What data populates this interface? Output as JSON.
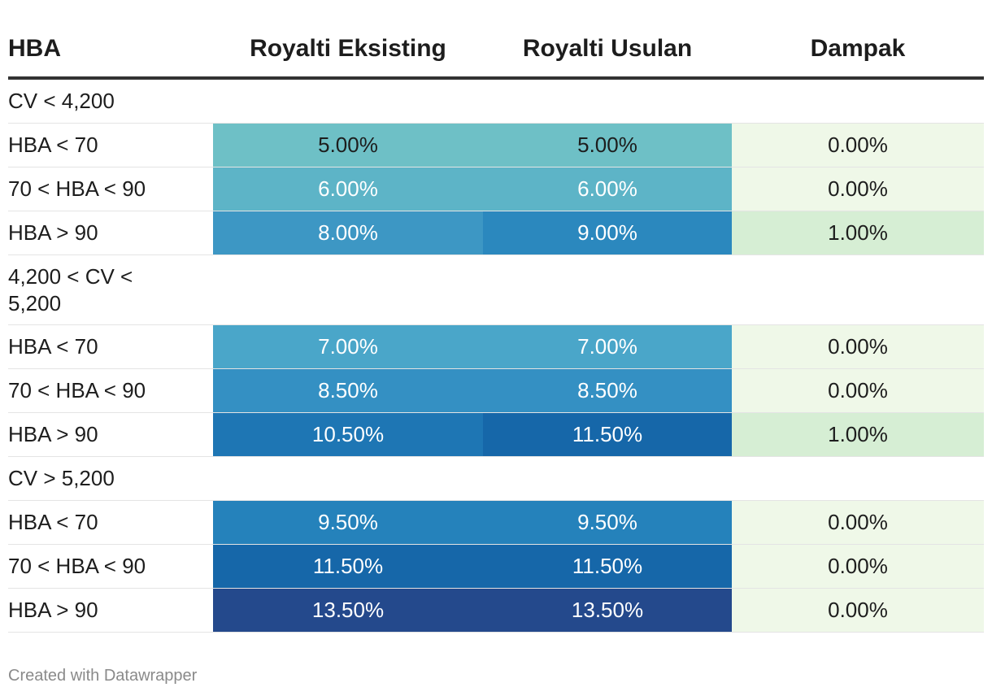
{
  "chart_data": {
    "type": "table",
    "columns": [
      "HBA",
      "Royalti Eksisting",
      "Royalti Usulan",
      "Dampak"
    ],
    "groups": [
      {
        "label": "CV < 4,200",
        "rows": [
          {
            "label": "HBA < 70",
            "eksisting": "5.00%",
            "usulan": "5.00%",
            "dampak": "0.00%",
            "eksisting_value": 5.0,
            "usulan_value": 5.0,
            "dampak_value": 0.0
          },
          {
            "label": "70 < HBA < 90",
            "eksisting": "6.00%",
            "usulan": "6.00%",
            "dampak": "0.00%",
            "eksisting_value": 6.0,
            "usulan_value": 6.0,
            "dampak_value": 0.0
          },
          {
            "label": "HBA > 90",
            "eksisting": "8.00%",
            "usulan": "9.00%",
            "dampak": "1.00%",
            "eksisting_value": 8.0,
            "usulan_value": 9.0,
            "dampak_value": 1.0
          }
        ]
      },
      {
        "label": "4,200 < CV <\n5,200",
        "rows": [
          {
            "label": "HBA < 70",
            "eksisting": "7.00%",
            "usulan": "7.00%",
            "dampak": "0.00%",
            "eksisting_value": 7.0,
            "usulan_value": 7.0,
            "dampak_value": 0.0
          },
          {
            "label": "70 < HBA < 90",
            "eksisting": "8.50%",
            "usulan": "8.50%",
            "dampak": "0.00%",
            "eksisting_value": 8.5,
            "usulan_value": 8.5,
            "dampak_value": 0.0
          },
          {
            "label": "HBA > 90",
            "eksisting": "10.50%",
            "usulan": "11.50%",
            "dampak": "1.00%",
            "eksisting_value": 10.5,
            "usulan_value": 11.5,
            "dampak_value": 1.0
          }
        ]
      },
      {
        "label": "CV > 5,200",
        "rows": [
          {
            "label": "HBA < 70",
            "eksisting": "9.50%",
            "usulan": "9.50%",
            "dampak": "0.00%",
            "eksisting_value": 9.5,
            "usulan_value": 9.5,
            "dampak_value": 0.0
          },
          {
            "label": "70 < HBA < 90",
            "eksisting": "11.50%",
            "usulan": "11.50%",
            "dampak": "0.00%",
            "eksisting_value": 11.5,
            "usulan_value": 11.5,
            "dampak_value": 0.0
          },
          {
            "label": "HBA > 90",
            "eksisting": "13.50%",
            "usulan": "13.50%",
            "dampak": "0.00%",
            "eksisting_value": 13.5,
            "usulan_value": 13.5,
            "dampak_value": 0.0
          }
        ]
      }
    ],
    "royalty_scale": {
      "stops": [
        {
          "value": 5.0,
          "color": "#6ec0c6"
        },
        {
          "value": 6.0,
          "color": "#5db4c7"
        },
        {
          "value": 7.0,
          "color": "#4aa6c9"
        },
        {
          "value": 8.0,
          "color": "#3d97c4"
        },
        {
          "value": 8.5,
          "color": "#3490c3"
        },
        {
          "value": 9.0,
          "color": "#2b88be"
        },
        {
          "value": 9.5,
          "color": "#2582bb"
        },
        {
          "value": 10.5,
          "color": "#1e76b4"
        },
        {
          "value": 11.5,
          "color": "#1667a9"
        },
        {
          "value": 13.5,
          "color": "#24498c"
        }
      ],
      "dark_text_below": 6.0
    },
    "impact_scale": {
      "stops": [
        {
          "value": 0.0,
          "color": "#eff8e8"
        },
        {
          "value": 1.0,
          "color": "#d6eed4"
        }
      ]
    }
  },
  "footer": "Created with Datawrapper"
}
